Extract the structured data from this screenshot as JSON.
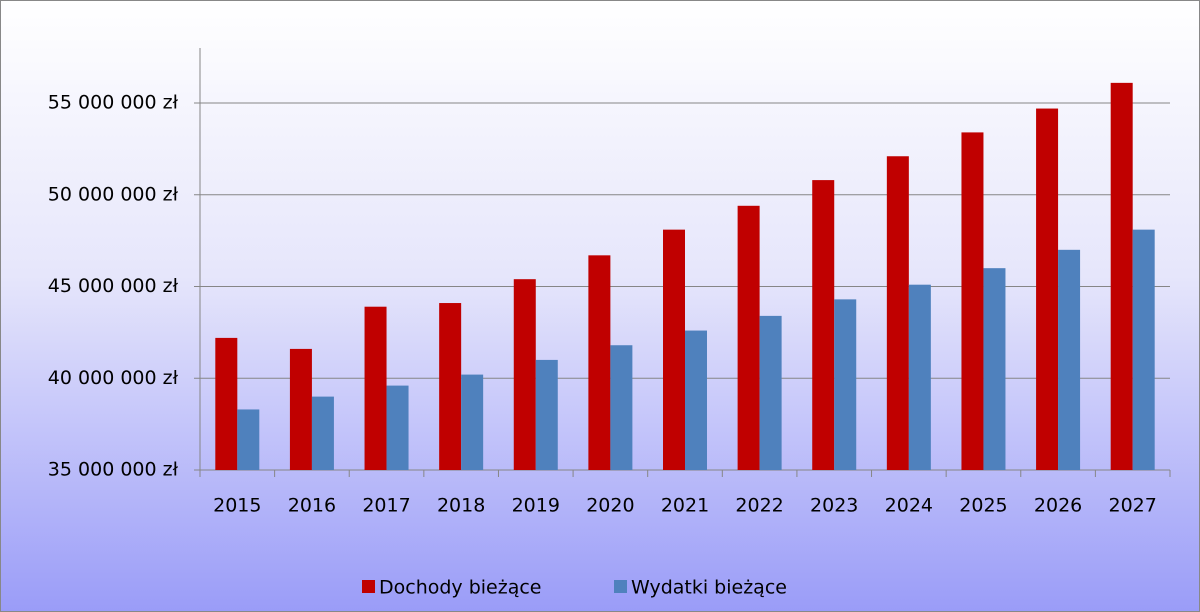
{
  "chart_data": {
    "type": "bar",
    "categories": [
      "2015",
      "2016",
      "2017",
      "2018",
      "2019",
      "2020",
      "2021",
      "2022",
      "2023",
      "2024",
      "2025",
      "2026",
      "2027"
    ],
    "series": [
      {
        "name": "Dochody bieżące",
        "color": "#c00000",
        "values": [
          42200000,
          41600000,
          43900000,
          44100000,
          45400000,
          46700000,
          48100000,
          49400000,
          50800000,
          52100000,
          53400000,
          54700000,
          56100000
        ]
      },
      {
        "name": "Wydatki bieżące",
        "color": "#4f81bd",
        "values": [
          38300000,
          39000000,
          39600000,
          40200000,
          41000000,
          41800000,
          42600000,
          43400000,
          44300000,
          45100000,
          46000000,
          47000000,
          48100000
        ]
      }
    ],
    "ylim": [
      35000000,
      58000000
    ],
    "yticks": [
      {
        "value": 35000000,
        "label": "35 000 000 zł"
      },
      {
        "value": 40000000,
        "label": "40 000 000 zł"
      },
      {
        "value": 45000000,
        "label": "45 000 000 zł"
      },
      {
        "value": 50000000,
        "label": "50 000 000 zł"
      },
      {
        "value": 55000000,
        "label": "55 000 000 zł"
      }
    ],
    "grid": true
  }
}
